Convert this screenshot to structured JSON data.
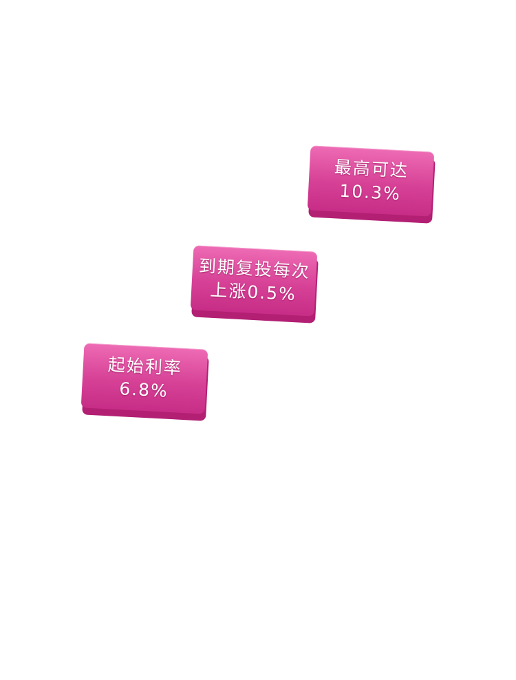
{
  "badges": [
    {
      "line1": "最高可达",
      "line2": "10.3%"
    },
    {
      "line1": "到期复投每次",
      "line2": "上涨0.5%"
    },
    {
      "line1": "起始利率",
      "line2": "6.8%"
    }
  ],
  "colors": {
    "badge_face_top": "#ee6bb4",
    "badge_face_bottom": "#c72d86",
    "badge_side": "#b21f73",
    "text": "#ffffff",
    "background": "#ffffff"
  }
}
